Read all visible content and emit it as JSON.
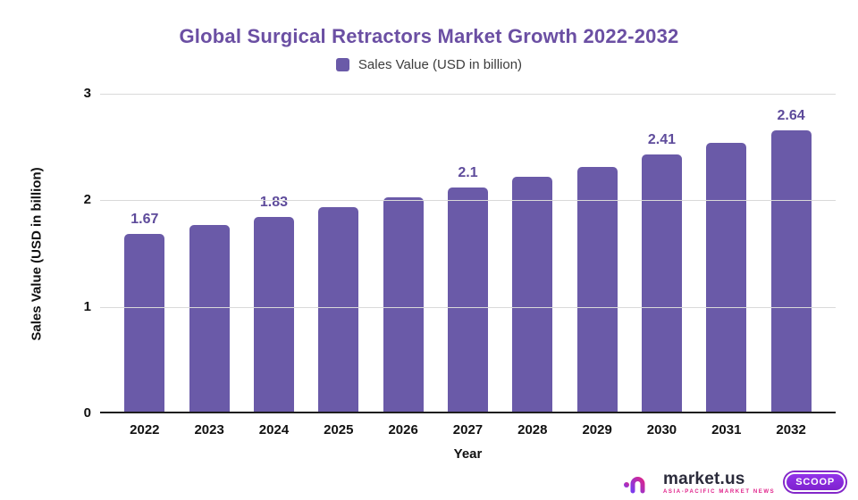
{
  "title": "Global Surgical Retractors Market Growth 2022-2032",
  "legend": {
    "label": "Sales Value (USD in billion)",
    "swatch_color": "#6A5AA8"
  },
  "chart_data": {
    "type": "bar",
    "title": "Global Surgical Retractors Market Growth 2022-2032",
    "categories": [
      "2022",
      "2023",
      "2024",
      "2025",
      "2026",
      "2027",
      "2028",
      "2029",
      "2030",
      "2031",
      "2032"
    ],
    "values": [
      1.67,
      1.75,
      1.83,
      1.92,
      2.01,
      2.1,
      2.2,
      2.3,
      2.41,
      2.52,
      2.64
    ],
    "shown_value_labels": [
      "1.67",
      "",
      "1.83",
      "",
      "",
      "2.1",
      "",
      "",
      "2.41",
      "",
      "2.64"
    ],
    "series_name": "Sales Value (USD in billion)",
    "xlabel": "Year",
    "ylabel": "Sales Value (USD in billion)",
    "ylim": [
      0,
      3
    ],
    "yticks": [
      0,
      1,
      2,
      3
    ],
    "grid": true,
    "legend_position": "top"
  },
  "colors": {
    "bar": "#6A5AA8",
    "title": "#6B4FA3",
    "value_label": "#5E4B9B",
    "axis_text": "#111111",
    "gridline": "#D9D9D9",
    "baseline": "#1F1F1F",
    "brand_pink": "#E0218A",
    "badge_purple": "#8327C8"
  },
  "footer_logo": {
    "brand": "market.us",
    "tagline": "ASIA-PACIFIC MARKET NEWS",
    "badge": "SCOOP"
  }
}
